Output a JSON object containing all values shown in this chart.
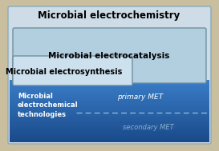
{
  "title": "Microbial electrochemistry",
  "box1_label": "Microbial electrocatalysis",
  "box2_label": "Microbial electrosynthesis",
  "box3_label": "Microbial\nelectrochemical\ntechnologies",
  "primary_met": "primary MET",
  "secondary_met": "secondary MET",
  "bg_color": "#c9be9e",
  "outer_box_facecolor": "#cddce6",
  "outer_box_edgecolor": "#8aaabb",
  "box1_facecolor": "#b2cfe0",
  "box1_edgecolor": "#7090a0",
  "box2_facecolor": "#cce0ee",
  "box2_edgecolor": "#7090a0",
  "blue_top_color": "#3a7ec8",
  "blue_bottom_color": "#1a4a8a",
  "dashed_line_color": "#88b8d8",
  "figsize": [
    2.73,
    1.89
  ],
  "dpi": 100
}
